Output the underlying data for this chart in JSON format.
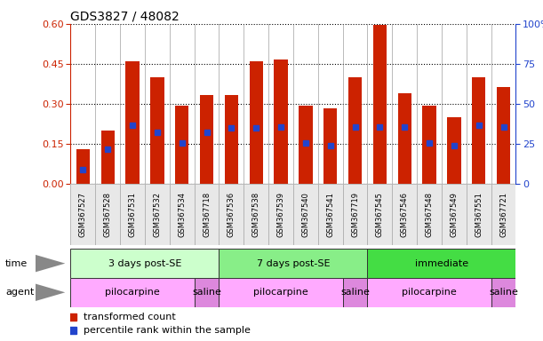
{
  "title": "GDS3827 / 48082",
  "samples": [
    "GSM367527",
    "GSM367528",
    "GSM367531",
    "GSM367532",
    "GSM367534",
    "GSM367718",
    "GSM367536",
    "GSM367538",
    "GSM367539",
    "GSM367540",
    "GSM367541",
    "GSM367719",
    "GSM367545",
    "GSM367546",
    "GSM367548",
    "GSM367549",
    "GSM367551",
    "GSM367721"
  ],
  "red_values": [
    0.13,
    0.2,
    0.46,
    0.4,
    0.295,
    0.335,
    0.335,
    0.46,
    0.465,
    0.295,
    0.285,
    0.4,
    0.595,
    0.34,
    0.295,
    0.25,
    0.4,
    0.365
  ],
  "blue_values": [
    0.055,
    0.13,
    0.22,
    0.195,
    0.155,
    0.195,
    0.21,
    0.21,
    0.215,
    0.155,
    0.145,
    0.215,
    0.215,
    0.215,
    0.155,
    0.145,
    0.22,
    0.215
  ],
  "bar_color": "#cc2200",
  "blue_color": "#2244cc",
  "ylim_left": [
    0,
    0.6
  ],
  "ylim_right": [
    0,
    100
  ],
  "yticks_left": [
    0,
    0.15,
    0.3,
    0.45,
    0.6
  ],
  "yticks_right": [
    0,
    25,
    50,
    75,
    100
  ],
  "groups_time": [
    {
      "label": "3 days post-SE",
      "start": 0,
      "end": 5,
      "color": "#ccffcc"
    },
    {
      "label": "7 days post-SE",
      "start": 6,
      "end": 11,
      "color": "#88ee88"
    },
    {
      "label": "immediate",
      "start": 12,
      "end": 17,
      "color": "#44dd44"
    }
  ],
  "groups_agent": [
    {
      "label": "pilocarpine",
      "start": 0,
      "end": 4,
      "color": "#ffaaff"
    },
    {
      "label": "saline",
      "start": 5,
      "end": 5,
      "color": "#dd88dd"
    },
    {
      "label": "pilocarpine",
      "start": 6,
      "end": 10,
      "color": "#ffaaff"
    },
    {
      "label": "saline",
      "start": 11,
      "end": 11,
      "color": "#dd88dd"
    },
    {
      "label": "pilocarpine",
      "start": 12,
      "end": 16,
      "color": "#ffaaff"
    },
    {
      "label": "saline",
      "start": 17,
      "end": 17,
      "color": "#dd88dd"
    }
  ],
  "legend_red": "transformed count",
  "legend_blue": "percentile rank within the sample",
  "bar_width": 0.55,
  "bg_color": "#ffffff",
  "label_color_left": "#cc2200",
  "label_color_right": "#2244cc",
  "time_label": "time",
  "agent_label": "agent",
  "sample_bg": "#dddddd",
  "sample_box": "#e8e8e8"
}
